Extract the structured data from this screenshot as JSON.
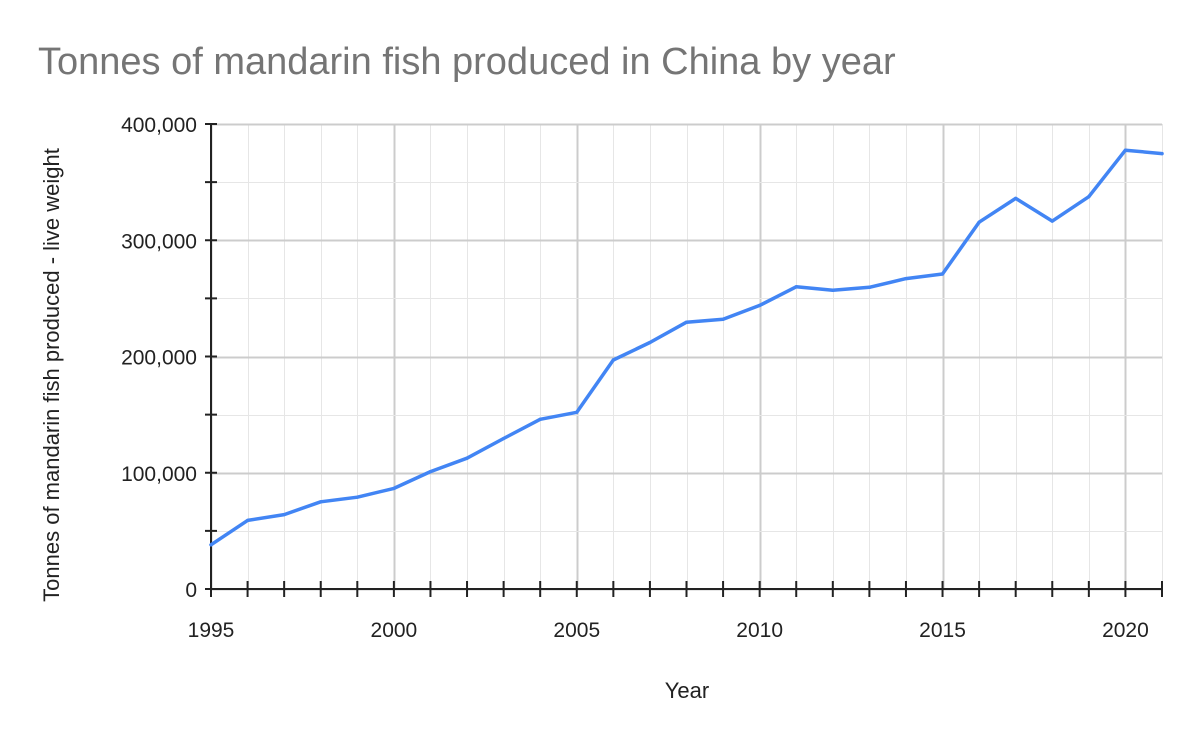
{
  "chart_data": {
    "type": "line",
    "title": "Tonnes of mandarin fish produced in China by year",
    "xlabel": "Year",
    "ylabel": "Tonnes of mandarin fish produced - live weight",
    "xlim": [
      1995,
      2021
    ],
    "ylim": [
      0,
      400000
    ],
    "x_ticks": [
      1995,
      2000,
      2005,
      2010,
      2015,
      2020
    ],
    "x_tick_labels": [
      "1995",
      "2000",
      "2005",
      "2010",
      "2015",
      "2020"
    ],
    "y_ticks": [
      0,
      100000,
      200000,
      300000,
      400000
    ],
    "y_tick_labels": [
      "0",
      "100,000",
      "200,000",
      "300,000",
      "400,000"
    ],
    "grid": true,
    "legend": "none",
    "series": [
      {
        "color": "#4285f4",
        "x": [
          1995,
          1996,
          1997,
          1998,
          1999,
          2000,
          2001,
          2002,
          2003,
          2004,
          2005,
          2006,
          2007,
          2008,
          2009,
          2010,
          2011,
          2012,
          2013,
          2014,
          2015,
          2016,
          2017,
          2018,
          2019,
          2020,
          2021
        ],
        "values": [
          38000,
          59000,
          64000,
          75000,
          79000,
          86500,
          101000,
          112500,
          129500,
          146000,
          152000,
          197000,
          212000,
          229500,
          232000,
          244000,
          260000,
          257000,
          259500,
          267000,
          271000,
          315500,
          336000,
          316500,
          337500,
          377500,
          374500
        ]
      }
    ]
  }
}
